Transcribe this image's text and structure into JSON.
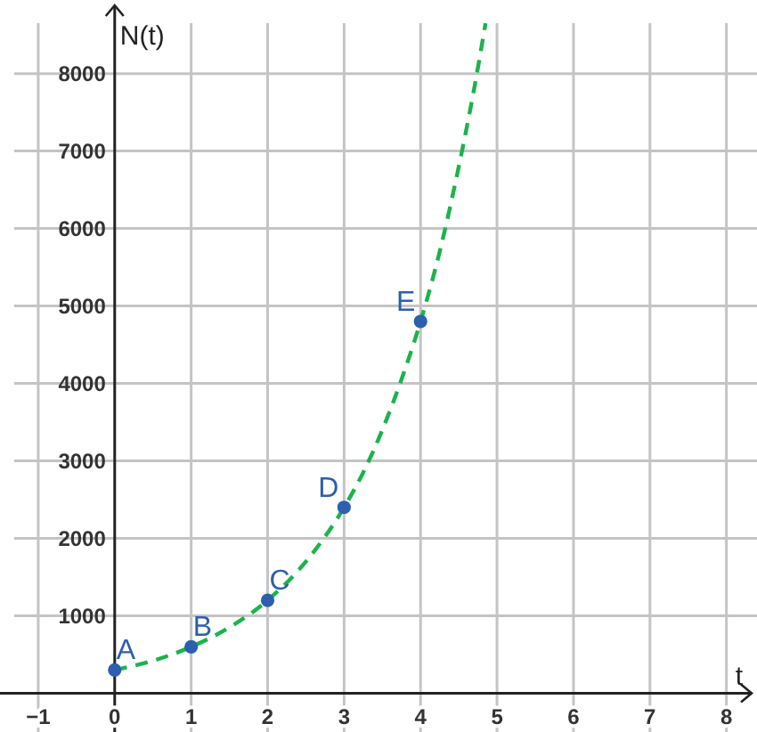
{
  "chart_data": {
    "type": "line",
    "xlabel": "t",
    "ylabel": "N(t)",
    "xlim": [
      -1.5,
      8.4
    ],
    "ylim": [
      -500,
      8950
    ],
    "xticks": [
      -1,
      0,
      1,
      2,
      3,
      4,
      5,
      6,
      7,
      8
    ],
    "yticks": [
      1000,
      2000,
      3000,
      4000,
      5000,
      6000,
      7000,
      8000
    ],
    "grid": true,
    "series": [
      {
        "color": "#1bb34a",
        "line_style": "dashed",
        "marker": "none",
        "x": [
          0,
          0.5,
          1,
          1.5,
          2,
          2.5,
          3,
          3.25,
          3.5,
          3.75,
          4,
          4.25,
          4.5,
          4.7,
          4.85
        ],
        "values": [
          300,
          420,
          600,
          850,
          1200,
          1700,
          2400,
          2850,
          3400,
          4050,
          4800,
          5700,
          6800,
          7800,
          8650
        ]
      },
      {
        "type": "scatter",
        "color": "#2d5faf",
        "marker": "circle",
        "x": [
          0,
          1,
          2,
          3,
          4
        ],
        "values": [
          300,
          600,
          1200,
          2400,
          4800
        ]
      }
    ],
    "annotations": [
      {
        "text": "A",
        "x": 0,
        "y": 300
      },
      {
        "text": "B",
        "x": 1,
        "y": 600
      },
      {
        "text": "C",
        "x": 2,
        "y": 1200
      },
      {
        "text": "D",
        "x": 3,
        "y": 2400
      },
      {
        "text": "E",
        "x": 4,
        "y": 4800
      }
    ]
  }
}
